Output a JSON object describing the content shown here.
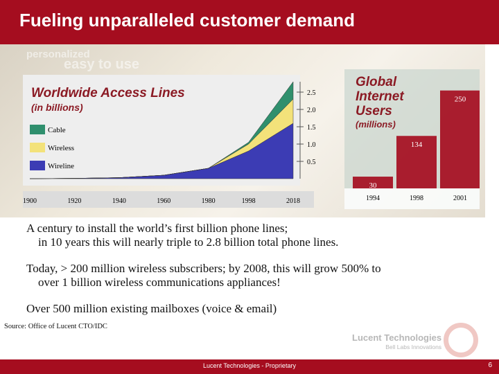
{
  "slide": {
    "title": "Fueling unparalleled customer demand",
    "background_words": [
      "personalized",
      "easy to use"
    ]
  },
  "chart_data": [
    {
      "type": "area",
      "title": "Worldwide Access Lines",
      "subtitle": "(in billions)",
      "x": [
        1900,
        1920,
        1940,
        1960,
        1980,
        1998,
        2018
      ],
      "ylim": [
        0,
        2.8
      ],
      "yticks": [
        "2.5",
        "2.0",
        "1.5",
        "1.0",
        "0.5"
      ],
      "yticks_values": [
        2.5,
        2.0,
        1.5,
        1.0,
        0.5
      ],
      "legend": [
        "Cable",
        "Wireless",
        "Wireline"
      ],
      "series": [
        {
          "name": "Wireline",
          "color": "#3c3cb4",
          "values": [
            0.0,
            0.01,
            0.03,
            0.1,
            0.3,
            0.8,
            1.6
          ]
        },
        {
          "name": "Wireless",
          "color": "#f3e27a",
          "values": [
            0.0,
            0.0,
            0.0,
            0.0,
            0.0,
            0.2,
            0.7
          ]
        },
        {
          "name": "Cable",
          "color": "#2f8f6d",
          "values": [
            0.0,
            0.0,
            0.0,
            0.0,
            0.0,
            0.05,
            0.5
          ]
        }
      ]
    },
    {
      "type": "bar",
      "title": [
        "Global",
        "Internet",
        "Users"
      ],
      "subtitle": "(millions)",
      "categories": [
        "1994",
        "1998",
        "2001"
      ],
      "values": [
        30,
        134,
        250
      ],
      "labels": [
        "30",
        "134",
        "250"
      ],
      "bar_color": "#a50d1f"
    }
  ],
  "bullets": [
    {
      "line1": "A century to install the world’s first billion phone lines;",
      "line2": "in 10 years this will nearly triple to 2.8 billion total phone lines."
    },
    {
      "line1": "Today, > 200 million wireless subscribers; by 2008, this will grow 500% to",
      "line2": "over 1 billion wireless communications appliances!"
    },
    {
      "line1": "Over 500 million existing mailboxes (voice & email)",
      "line2": ""
    }
  ],
  "source": "Source:   Office of Lucent CTO/IDC",
  "logo": {
    "name": "Lucent Technologies",
    "sub": "Bell Labs Innovations"
  },
  "footer": {
    "text": "Lucent Technologies - Proprietary",
    "page": "6"
  }
}
